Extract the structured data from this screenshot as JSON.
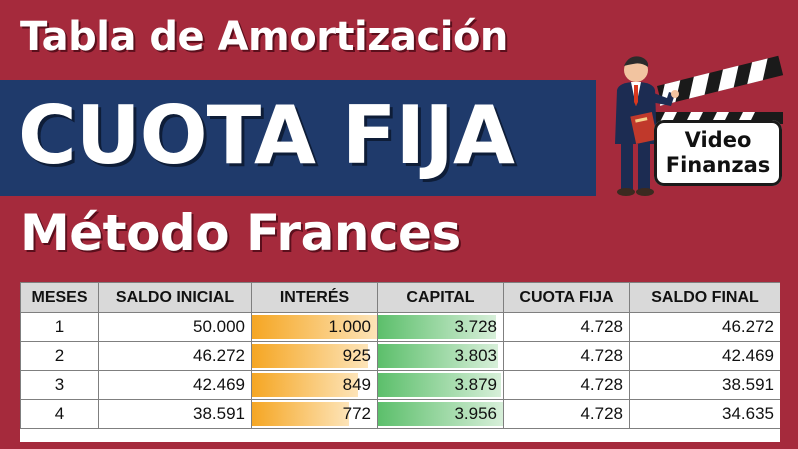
{
  "title_top": "Tabla de Amortización",
  "banner_text": "CUOTA FIJA",
  "title_bottom": "Método Frances",
  "badge": {
    "line1": "Video",
    "line2": "Finanzas"
  },
  "icons": {
    "mascot": "presenter-with-clapperboard-icon"
  },
  "colors": {
    "background": "#a52a3c",
    "banner": "#1f3a6b",
    "interest_bar": "#f5a623",
    "capital_bar": "#5cbf6b"
  },
  "table": {
    "headers": [
      "MESES",
      "SALDO INICIAL",
      "INTERÉS",
      "CAPITAL",
      "CUOTA FIJA",
      "SALDO FINAL"
    ],
    "rows": [
      {
        "mes": "1",
        "saldo_inicial": "50.000",
        "interes": "1.000",
        "interes_level": 1.0,
        "capital": "3.728",
        "capital_level": 0.942,
        "cuota": "4.728",
        "saldo_final": "46.272"
      },
      {
        "mes": "2",
        "saldo_inicial": "46.272",
        "interes": "925",
        "interes_level": 0.925,
        "capital": "3.803",
        "capital_level": 0.961,
        "cuota": "4.728",
        "saldo_final": "42.469"
      },
      {
        "mes": "3",
        "saldo_inicial": "42.469",
        "interes": "849",
        "interes_level": 0.849,
        "capital": "3.879",
        "capital_level": 0.981,
        "cuota": "4.728",
        "saldo_final": "38.591"
      },
      {
        "mes": "4",
        "saldo_inicial": "38.591",
        "interes": "772",
        "interes_level": 0.772,
        "capital": "3.956",
        "capital_level": 1.0,
        "cuota": "4.728",
        "saldo_final": "34.635"
      }
    ]
  }
}
